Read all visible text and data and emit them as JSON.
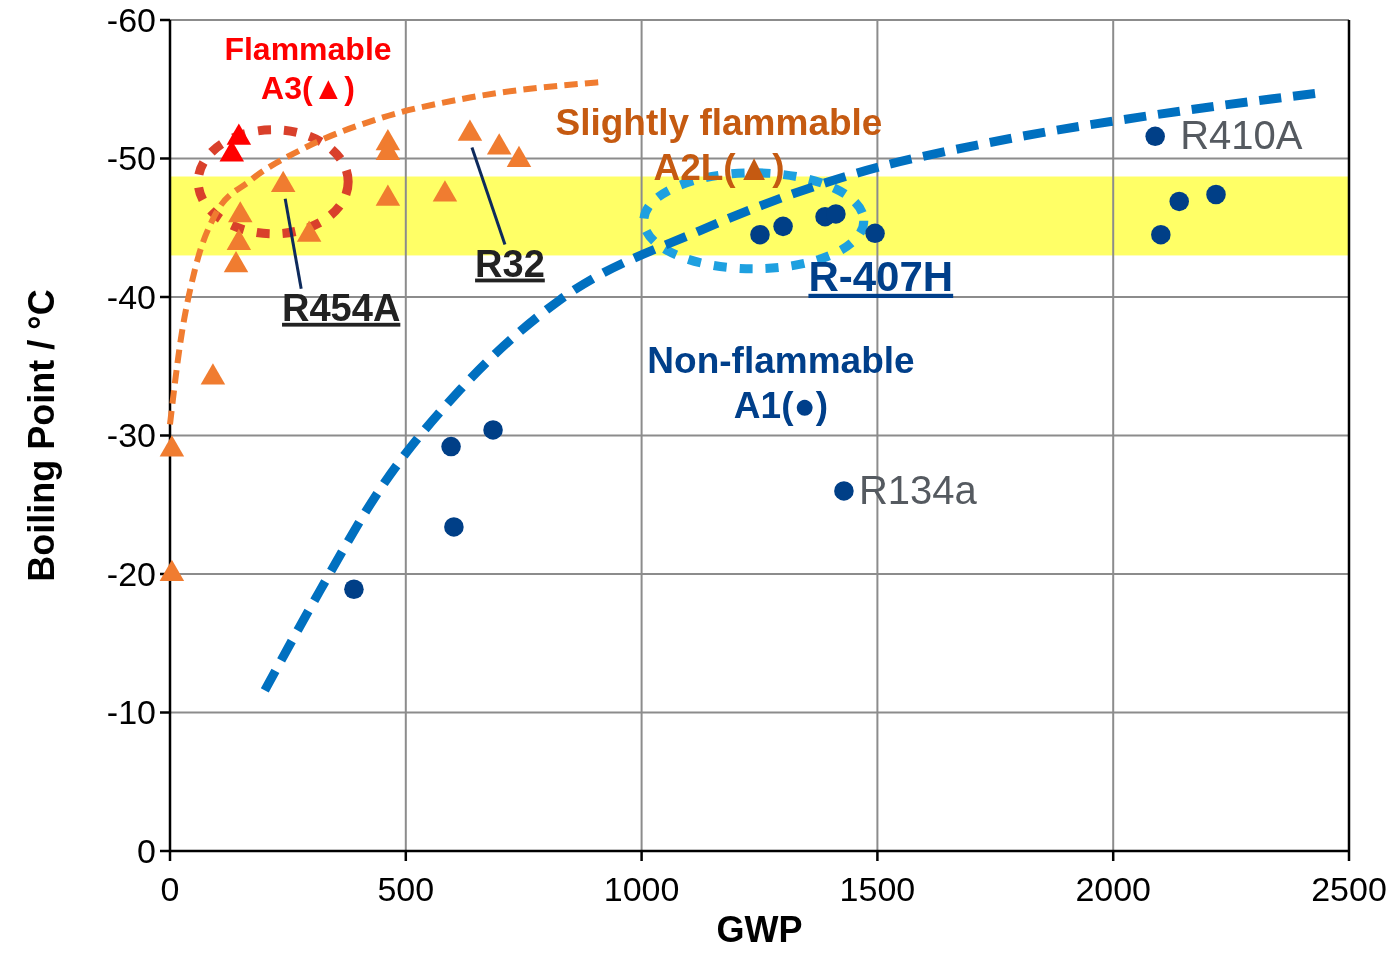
{
  "chart_data": {
    "type": "scatter",
    "xlabel": "GWP",
    "ylabel": "Boiling Point / °C",
    "xlim": [
      0,
      2500
    ],
    "xticks": [
      0,
      500,
      1000,
      1500,
      2000,
      2500
    ],
    "ylim": [
      0,
      -60
    ],
    "yticks": [
      0,
      -10,
      -20,
      -30,
      -40,
      -50,
      -60
    ],
    "grid": true,
    "bands": [
      {
        "axis": "y",
        "from": -48.7,
        "to": -43,
        "color": "#ffff66"
      }
    ],
    "series": [
      {
        "type": "line",
        "color": "#f07c30",
        "line_style": "dashed",
        "marker": "none",
        "x": [
          0,
          21,
          53,
          95,
          170,
          276,
          445,
          636,
          908
        ],
        "values": [
          -30.8,
          -36.5,
          -42,
          -45.9,
          -48.4,
          -50.6,
          -52.9,
          -54.4,
          -55.5
        ]
      },
      {
        "type": "line",
        "color": "#0070c0",
        "line_style": "dashed",
        "marker": "none",
        "x": [
          201,
          318,
          445,
          615,
          827,
          1124,
          1442,
          1760,
          2078,
          2428
        ],
        "values": [
          -11.6,
          -18.8,
          -26.1,
          -33.3,
          -39.8,
          -44.8,
          -48.8,
          -51.3,
          -53.1,
          -54.7
        ]
      },
      {
        "color": "#f07c30",
        "marker": "triangle",
        "x": [
          149,
          146,
          140,
          240,
          295,
          462,
          462,
          462,
          583,
          636,
          698,
          740,
          91,
          4,
          4
        ],
        "values": [
          -45.9,
          -43.9,
          -42.3,
          -48.1,
          -44.5,
          -51.1,
          -50.4,
          -47.1,
          -47.4,
          -51.8,
          -50.8,
          -49.9,
          -34.2,
          -29,
          -20
        ]
      },
      {
        "color": "#ff0000",
        "marker": "triangle",
        "x": [
          146,
          131
        ],
        "values": [
          -51.5,
          -50.3
        ]
      },
      {
        "color": "#003f87",
        "marker": "circle",
        "x": [
          390,
          596,
          602,
          685,
          1251,
          1300,
          1389,
          1412,
          1495,
          1429,
          2089,
          2140,
          2218,
          2101
        ],
        "values": [
          -18.9,
          -29.2,
          -23.4,
          -30.4,
          -44.5,
          -45.1,
          -45.8,
          -46,
          -44.6,
          -26,
          -51.6,
          -46.9,
          -47.4,
          -44.5
        ]
      }
    ],
    "annotations": [
      "Flammable\nA3(▲)",
      "Slightly flammable\nA2L(▲)",
      "Non-flammable\nA1(●)",
      {
        "text": "R454A",
        "x": 240,
        "y": -48.1
      },
      {
        "text": "R32",
        "x": 636,
        "y": -51.8
      },
      {
        "text": "R-407H",
        "x": 1380,
        "y": -45.5
      },
      {
        "text": "R410A",
        "x": 2089,
        "y": -51.6
      },
      {
        "text": "R134a",
        "x": 1429,
        "y": -26
      }
    ]
  }
}
